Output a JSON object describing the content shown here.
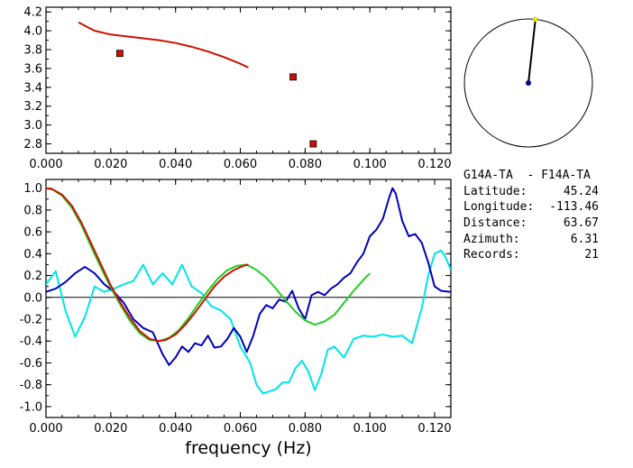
{
  "info": {
    "station_pair": "G14A-TA  - F14A-TA",
    "latitude_label": "Latitude:",
    "latitude": "45.24",
    "longitude_label": "Longitude:",
    "longitude": "-113.46",
    "distance_label": "Distance:",
    "distance": "63.67",
    "azimuth_label": "Azimuth:",
    "azimuth": "6.31",
    "records_label": "Records:",
    "records": "21"
  },
  "colors": {
    "red": "#cc1100",
    "green": "#22cc22",
    "blue": "#0000bb",
    "cyan": "#00e5e5",
    "marker_fill": "#cc1100",
    "yellow_dot": "#eeee00",
    "navy_dot": "#000088"
  },
  "azimuth_deg": 6.31,
  "chart_data": [
    {
      "type": "scatter",
      "xlim": [
        0.0,
        0.125
      ],
      "ylim": [
        2.7,
        4.25
      ],
      "x_ticks": [
        "0.000",
        "0.020",
        "0.040",
        "0.060",
        "0.080",
        "0.100",
        "0.120"
      ],
      "x_tick_values": [
        0.0,
        0.02,
        0.04,
        0.06,
        0.08,
        0.1,
        0.12
      ],
      "y_ticks": [
        "2.8",
        "3.0",
        "3.2",
        "3.4",
        "3.6",
        "3.8",
        "4.0",
        "4.2"
      ],
      "y_tick_values": [
        2.8,
        3.0,
        3.2,
        3.4,
        3.6,
        3.8,
        4.0,
        4.2
      ],
      "series": [
        {
          "kind": "line",
          "color": "red",
          "x": [
            0.01,
            0.015,
            0.02,
            0.025,
            0.03,
            0.035,
            0.04,
            0.045,
            0.05,
            0.055,
            0.06,
            0.0625
          ],
          "y": [
            4.09,
            4.0,
            3.96,
            3.94,
            3.92,
            3.9,
            3.87,
            3.83,
            3.78,
            3.72,
            3.65,
            3.61
          ]
        },
        {
          "kind": "markers",
          "color": "marker_fill",
          "x": [
            0.0228,
            0.0763,
            0.0825
          ],
          "y": [
            3.76,
            3.51,
            2.8
          ]
        }
      ]
    },
    {
      "type": "line",
      "xlabel": "frequency  (Hz)",
      "xlim": [
        0.0,
        0.125
      ],
      "ylim": [
        -1.1,
        1.08
      ],
      "x_ticks": [
        "0.000",
        "0.020",
        "0.040",
        "0.060",
        "0.080",
        "0.100",
        "0.120"
      ],
      "x_tick_values": [
        0.0,
        0.02,
        0.04,
        0.06,
        0.08,
        0.1,
        0.12
      ],
      "y_ticks": [
        "-1.0",
        "-0.8",
        "-0.6",
        "-0.4",
        "-0.2",
        "0.0",
        "0.2",
        "0.4",
        "0.6",
        "0.8",
        "1.0"
      ],
      "y_tick_values": [
        -1.0,
        -0.8,
        -0.6,
        -0.4,
        -0.2,
        0.0,
        0.2,
        0.4,
        0.6,
        0.8,
        1.0
      ],
      "zero_line": true,
      "series": [
        {
          "color": "cyan",
          "x": [
            0.0,
            0.003,
            0.006,
            0.009,
            0.012,
            0.015,
            0.018,
            0.021,
            0.024,
            0.027,
            0.03,
            0.033,
            0.036,
            0.039,
            0.042,
            0.045,
            0.048,
            0.051,
            0.054,
            0.057,
            0.06,
            0.063,
            0.065,
            0.067,
            0.069,
            0.071,
            0.073,
            0.075,
            0.077,
            0.079,
            0.081,
            0.083,
            0.085,
            0.087,
            0.089,
            0.092,
            0.095,
            0.098,
            0.101,
            0.104,
            0.107,
            0.11,
            0.113,
            0.116,
            0.118,
            0.12,
            0.122,
            0.1235,
            0.125
          ],
          "y": [
            0.12,
            0.24,
            -0.12,
            -0.36,
            -0.18,
            0.1,
            0.05,
            0.08,
            0.12,
            0.15,
            0.3,
            0.12,
            0.22,
            0.12,
            0.3,
            0.1,
            0.04,
            -0.08,
            -0.12,
            -0.2,
            -0.45,
            -0.6,
            -0.8,
            -0.88,
            -0.86,
            -0.84,
            -0.78,
            -0.78,
            -0.65,
            -0.58,
            -0.68,
            -0.85,
            -0.7,
            -0.48,
            -0.45,
            -0.55,
            -0.38,
            -0.35,
            -0.36,
            -0.34,
            -0.36,
            -0.35,
            -0.42,
            -0.1,
            0.2,
            0.4,
            0.43,
            0.36,
            0.25
          ]
        },
        {
          "color": "blue",
          "x": [
            0.0,
            0.003,
            0.006,
            0.009,
            0.012,
            0.015,
            0.018,
            0.021,
            0.024,
            0.027,
            0.03,
            0.033,
            0.036,
            0.038,
            0.04,
            0.042,
            0.044,
            0.046,
            0.048,
            0.05,
            0.052,
            0.054,
            0.056,
            0.058,
            0.06,
            0.062,
            0.064,
            0.066,
            0.068,
            0.07,
            0.072,
            0.074,
            0.076,
            0.078,
            0.08,
            0.082,
            0.084,
            0.086,
            0.088,
            0.09,
            0.092,
            0.094,
            0.096,
            0.098,
            0.1,
            0.102,
            0.104,
            0.106,
            0.107,
            0.108,
            0.11,
            0.112,
            0.114,
            0.116,
            0.118,
            0.12,
            0.122,
            0.125
          ],
          "y": [
            0.05,
            0.08,
            0.14,
            0.22,
            0.28,
            0.22,
            0.12,
            0.05,
            -0.05,
            -0.2,
            -0.28,
            -0.32,
            -0.52,
            -0.62,
            -0.55,
            -0.45,
            -0.5,
            -0.42,
            -0.44,
            -0.35,
            -0.46,
            -0.45,
            -0.38,
            -0.28,
            -0.36,
            -0.5,
            -0.35,
            -0.15,
            -0.07,
            -0.1,
            -0.02,
            -0.04,
            0.06,
            -0.1,
            -0.2,
            0.02,
            0.05,
            0.02,
            0.08,
            0.12,
            0.18,
            0.22,
            0.32,
            0.4,
            0.56,
            0.62,
            0.72,
            0.92,
            1.0,
            0.95,
            0.7,
            0.56,
            0.58,
            0.5,
            0.32,
            0.1,
            0.06,
            0.05
          ]
        },
        {
          "color": "green",
          "x": [
            0.0,
            0.002,
            0.005,
            0.008,
            0.011,
            0.014,
            0.017,
            0.02,
            0.023,
            0.026,
            0.029,
            0.032,
            0.035,
            0.038,
            0.041,
            0.044,
            0.047,
            0.05,
            0.053,
            0.056,
            0.059,
            0.062,
            0.065,
            0.068,
            0.071,
            0.074,
            0.077,
            0.08,
            0.083,
            0.086,
            0.089,
            0.092,
            0.095,
            0.098,
            0.1
          ],
          "y": [
            1.0,
            0.99,
            0.93,
            0.82,
            0.66,
            0.46,
            0.27,
            0.09,
            -0.07,
            -0.22,
            -0.33,
            -0.39,
            -0.4,
            -0.37,
            -0.3,
            -0.19,
            -0.06,
            0.06,
            0.17,
            0.25,
            0.29,
            0.3,
            0.25,
            0.18,
            0.08,
            -0.03,
            -0.13,
            -0.21,
            -0.25,
            -0.22,
            -0.16,
            -0.05,
            0.06,
            0.16,
            0.22
          ]
        },
        {
          "color": "red",
          "x": [
            0.0,
            0.002,
            0.005,
            0.008,
            0.011,
            0.014,
            0.017,
            0.02,
            0.023,
            0.026,
            0.029,
            0.032,
            0.035,
            0.037,
            0.04,
            0.043,
            0.046,
            0.049,
            0.052,
            0.055,
            0.058,
            0.061,
            0.0625
          ],
          "y": [
            1.0,
            0.99,
            0.94,
            0.84,
            0.68,
            0.49,
            0.3,
            0.11,
            -0.05,
            -0.19,
            -0.31,
            -0.38,
            -0.4,
            -0.39,
            -0.34,
            -0.25,
            -0.14,
            -0.02,
            0.1,
            0.19,
            0.25,
            0.29,
            0.3
          ]
        }
      ]
    }
  ]
}
